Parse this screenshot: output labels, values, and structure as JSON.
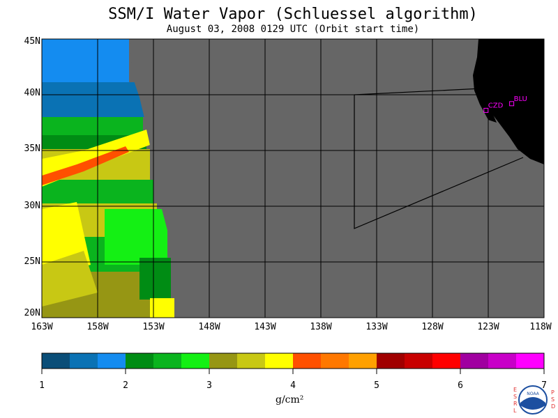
{
  "title": "SSM/I Water Vapor (Schluessel algorithm)",
  "subtitle": "August 03, 2008  0129 UTC  (Orbit start time)",
  "map": {
    "lat_labels": [
      "45N",
      "40N",
      "35N",
      "30N",
      "25N",
      "20N"
    ],
    "lon_labels": [
      "163W",
      "158W",
      "153W",
      "148W",
      "143W",
      "138W",
      "133W",
      "128W",
      "123W",
      "118W"
    ],
    "stations": [
      {
        "name": "CZD",
        "lat": 38.6,
        "lon": -123.2
      },
      {
        "name": "BLU",
        "lat": 39.2,
        "lon": -120.9
      }
    ],
    "ocean_color": "#666666",
    "land_color": "#000000",
    "station_color": "#ff00ff"
  },
  "colorbar": {
    "unit": "g/cm²",
    "ticks": [
      "1",
      "2",
      "3",
      "4",
      "5",
      "6",
      "7"
    ],
    "colors": [
      "#0a4e78",
      "#0a72b4",
      "#148cf0",
      "#008c14",
      "#0ab41e",
      "#14f014",
      "#969614",
      "#c8c814",
      "#ffff00",
      "#ff5000",
      "#ff7800",
      "#ffa000",
      "#a00000",
      "#c80000",
      "#ff0000",
      "#a000a0",
      "#c800c8",
      "#ff00ff"
    ]
  },
  "logo": {
    "left_text": "ESRL",
    "right_text": "PSD",
    "center_text": "NOAA"
  }
}
